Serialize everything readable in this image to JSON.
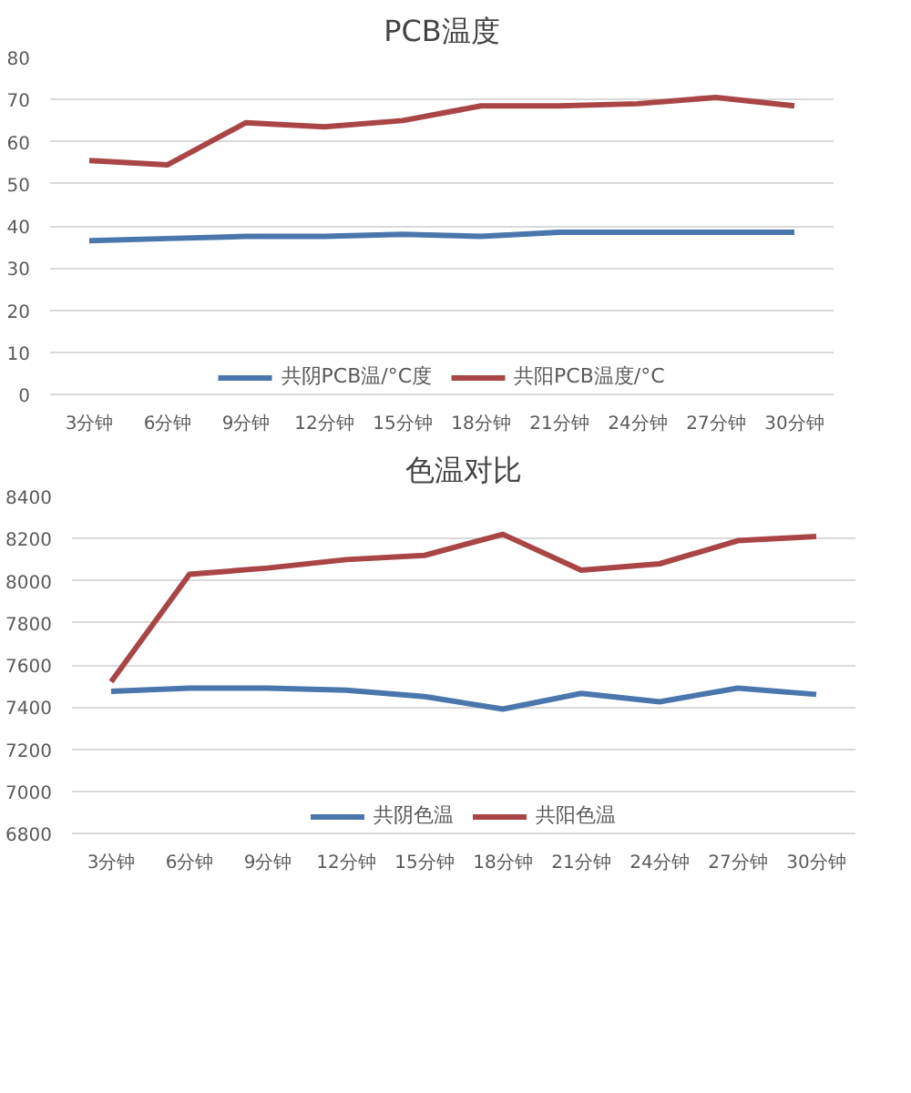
{
  "chart_data": [
    {
      "type": "line",
      "title": "PCB温度",
      "categories": [
        "3分钟",
        "6分钟",
        "9分钟",
        "12分钟",
        "15分钟",
        "18分钟",
        "21分钟",
        "24分钟",
        "27分钟",
        "30分钟"
      ],
      "series": [
        {
          "name": "共阴PCB温/°C度",
          "color": "#4a76ac",
          "values": [
            36.5,
            37,
            37.5,
            37.5,
            38,
            37.5,
            38.5,
            38.5,
            38.5,
            38.5
          ]
        },
        {
          "name": "共阳PCB温度/°C",
          "color": "#a94545",
          "values": [
            55.5,
            54.5,
            64.5,
            63.5,
            65,
            68.5,
            68.5,
            69,
            70.5,
            68.5
          ]
        }
      ],
      "ylim": [
        0,
        80
      ],
      "yticks": [
        0,
        10,
        20,
        30,
        40,
        50,
        60,
        70,
        80
      ],
      "grid": "y",
      "legend": "bottom",
      "marker": "none",
      "line_style": "solid"
    },
    {
      "type": "line",
      "title": "色温对比",
      "categories": [
        "3分钟",
        "6分钟",
        "9分钟",
        "12分钟",
        "15分钟",
        "18分钟",
        "21分钟",
        "24分钟",
        "27分钟",
        "30分钟"
      ],
      "series": [
        {
          "name": "共阴色温",
          "color": "#4a76ac",
          "values": [
            7475,
            7490,
            7490,
            7480,
            7450,
            7390,
            7465,
            7425,
            7490,
            7460
          ]
        },
        {
          "name": "共阳色温",
          "color": "#a94545",
          "values": [
            7520,
            8030,
            8060,
            8100,
            8120,
            8220,
            8050,
            8080,
            8190,
            8210
          ]
        }
      ],
      "ylim": [
        6800,
        8400
      ],
      "yticks": [
        6800,
        7000,
        7200,
        7400,
        7600,
        7800,
        8000,
        8200,
        8400
      ],
      "grid": "y",
      "legend": "bottom",
      "marker": "none",
      "line_style": "solid"
    }
  ]
}
